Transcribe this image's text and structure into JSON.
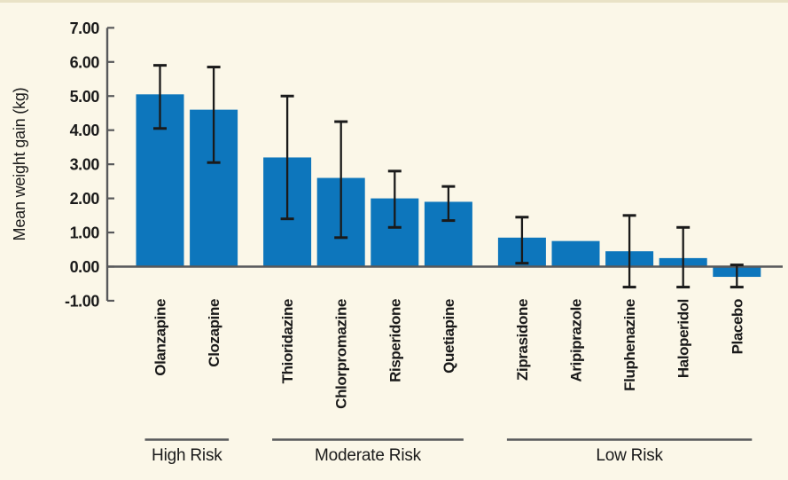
{
  "figure": {
    "background_color": "#FBF7E8",
    "top_border_color": "#E9E2C6"
  },
  "chart_data": {
    "type": "bar",
    "ylabel": "Mean weight gain (kg)",
    "xlabel": "",
    "ylim": [
      -1.0,
      7.0
    ],
    "grid": false,
    "legend": "none",
    "bar_color": "#0D76BC",
    "error_bar_color": "#1A1A1A",
    "axis_color": "#58595B",
    "yticks": [
      {
        "v": -1,
        "label": "-1.00"
      },
      {
        "v": 0,
        "label": "0.00"
      },
      {
        "v": 1,
        "label": "1.00"
      },
      {
        "v": 2,
        "label": "2.00"
      },
      {
        "v": 3,
        "label": "3.00"
      },
      {
        "v": 4,
        "label": "4.00"
      },
      {
        "v": 5,
        "label": "5.00"
      },
      {
        "v": 6,
        "label": "6.00"
      },
      {
        "v": 7,
        "label": "7.00"
      }
    ],
    "groups": [
      {
        "label": "High Risk",
        "drugs": [
          {
            "name": "Olanzapine",
            "value": 5.05,
            "err_low": 4.05,
            "err_high": 5.9
          },
          {
            "name": "Clozapine",
            "value": 4.6,
            "err_low": 3.05,
            "err_high": 5.85
          }
        ]
      },
      {
        "label": "Moderate Risk",
        "drugs": [
          {
            "name": "Thioridazine",
            "value": 3.2,
            "err_low": 1.4,
            "err_high": 5.0
          },
          {
            "name": "Chlorpromazine",
            "value": 2.6,
            "err_low": 0.85,
            "err_high": 4.25
          },
          {
            "name": "Risperidone",
            "value": 2.0,
            "err_low": 1.15,
            "err_high": 2.8
          },
          {
            "name": "Quetiapine",
            "value": 1.9,
            "err_low": 1.35,
            "err_high": 2.35
          }
        ]
      },
      {
        "label": "Low Risk",
        "drugs": [
          {
            "name": "Ziprasidone",
            "value": 0.85,
            "err_low": 0.1,
            "err_high": 1.45
          },
          {
            "name": "Aripiprazole",
            "value": 0.75,
            "err_low": null,
            "err_high": null
          },
          {
            "name": "Fluphenazine",
            "value": 0.45,
            "err_low": -0.6,
            "err_high": 1.5
          },
          {
            "name": "Haloperidol",
            "value": 0.25,
            "err_low": -0.6,
            "err_high": 1.15
          },
          {
            "name": "Placebo",
            "value": -0.3,
            "err_low": -0.6,
            "err_high": 0.05
          }
        ]
      }
    ]
  }
}
